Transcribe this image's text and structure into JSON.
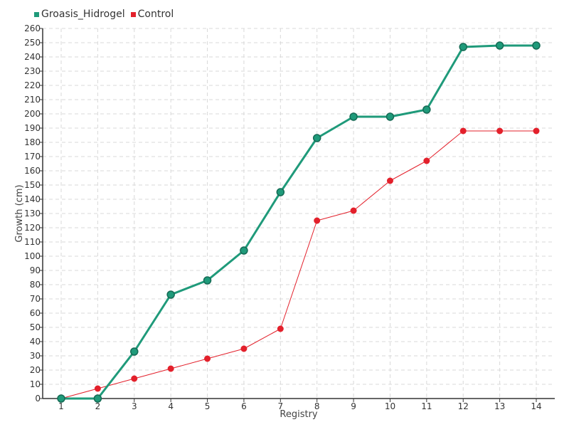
{
  "chart_data": {
    "type": "line",
    "categories": [
      "1",
      "2",
      "3",
      "4",
      "5",
      "6",
      "7",
      "8",
      "9",
      "10",
      "11",
      "12",
      "13",
      "14"
    ],
    "series": [
      {
        "name": "Groasis_Hidrogel",
        "color": "#1f9a7a",
        "values": [
          0,
          0,
          33,
          73,
          83,
          104,
          145,
          183,
          198,
          198,
          203,
          247,
          248,
          248
        ]
      },
      {
        "name": "Control",
        "color": "#e3202b",
        "values": [
          0,
          7,
          14,
          21,
          28,
          35,
          49,
          125,
          132,
          153,
          167,
          188,
          188,
          188
        ]
      }
    ],
    "xlabel": "Registry",
    "ylabel": "Growth (cm)",
    "ylim": [
      0,
      260
    ],
    "ytick_step": 10,
    "grid": true,
    "legend_position": "top-left"
  }
}
